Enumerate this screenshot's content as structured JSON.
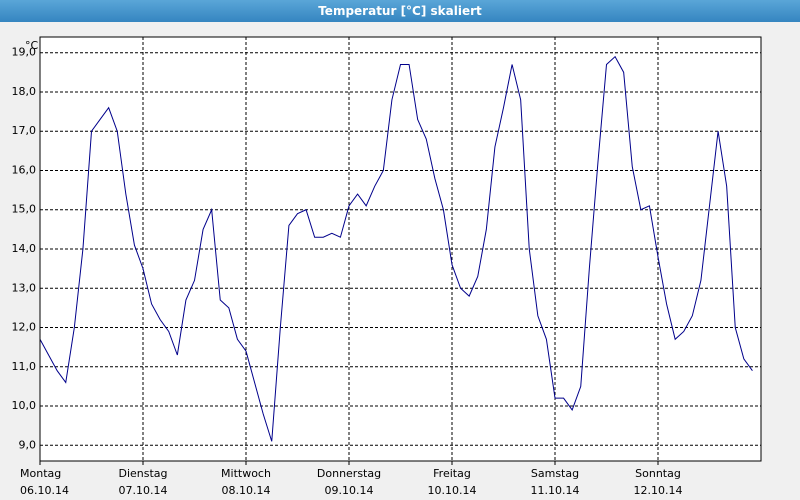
{
  "chart_data": {
    "type": "line",
    "title": "Temperatur [°C] skaliert",
    "y_unit": "°C",
    "x": [
      0,
      2,
      4,
      6,
      8,
      10,
      12,
      14,
      16,
      18,
      20,
      22,
      24,
      26,
      28,
      30,
      32,
      34,
      36,
      38,
      40,
      42,
      44,
      46,
      48,
      50,
      52,
      54,
      56,
      58,
      60,
      62,
      64,
      66,
      68,
      70,
      72,
      74,
      76,
      78,
      80,
      82,
      84,
      86,
      88,
      90,
      92,
      94,
      96,
      98,
      100,
      102,
      104,
      106,
      108,
      110,
      112,
      114,
      116,
      118,
      120,
      122,
      124,
      126,
      128,
      130,
      132,
      134,
      136,
      138,
      140,
      142,
      144,
      146,
      148,
      150,
      152,
      154,
      156,
      158,
      160,
      162,
      164,
      166
    ],
    "series": [
      {
        "name": "Temperatur",
        "color": "#00008b",
        "values": [
          11.7,
          11.3,
          10.9,
          10.6,
          12.0,
          14.0,
          17.0,
          17.3,
          17.6,
          17.0,
          15.4,
          14.1,
          13.5,
          12.6,
          12.2,
          11.9,
          11.3,
          12.7,
          13.2,
          14.5,
          15.0,
          12.7,
          12.5,
          11.7,
          11.4,
          10.6,
          9.8,
          9.1,
          12.0,
          14.6,
          14.9,
          15.0,
          14.3,
          14.3,
          14.4,
          14.3,
          15.1,
          15.4,
          15.1,
          15.6,
          16.0,
          17.8,
          18.7,
          18.7,
          17.3,
          16.8,
          15.8,
          15.0,
          13.6,
          13.0,
          12.8,
          13.3,
          14.5,
          16.6,
          17.6,
          18.7,
          17.8,
          14.0,
          12.3,
          11.7,
          10.2,
          10.2,
          9.9,
          10.5,
          13.5,
          16.2,
          18.7,
          18.9,
          18.5,
          16.1,
          15.0,
          15.1,
          13.8,
          12.6,
          11.7,
          11.9,
          12.3,
          13.2,
          15.1,
          17.0,
          15.6,
          12.0,
          11.2,
          10.9
        ]
      }
    ],
    "xlim": [
      0,
      168
    ],
    "xticks": [
      {
        "value": 0,
        "label": "Montag",
        "sublabel": "06.10.14"
      },
      {
        "value": 24,
        "label": "Dienstag",
        "sublabel": "07.10.14"
      },
      {
        "value": 48,
        "label": "Mittwoch",
        "sublabel": "08.10.14"
      },
      {
        "value": 72,
        "label": "Donnerstag",
        "sublabel": "09.10.14"
      },
      {
        "value": 96,
        "label": "Freitag",
        "sublabel": "10.10.14"
      },
      {
        "value": 120,
        "label": "Samstag",
        "sublabel": "11.10.14"
      },
      {
        "value": 144,
        "label": "Sonntag",
        "sublabel": "12.10.14"
      }
    ],
    "ylim": [
      8.6,
      19.4
    ],
    "yticks": [
      {
        "value": 9,
        "label": "9,0"
      },
      {
        "value": 10,
        "label": "10,0"
      },
      {
        "value": 11,
        "label": "11,0"
      },
      {
        "value": 12,
        "label": "12,0"
      },
      {
        "value": 13,
        "label": "13,0"
      },
      {
        "value": 14,
        "label": "14,0"
      },
      {
        "value": 15,
        "label": "15,0"
      },
      {
        "value": 16,
        "label": "16,0"
      },
      {
        "value": 17,
        "label": "17,0"
      },
      {
        "value": 18,
        "label": "18,0"
      },
      {
        "value": 19,
        "label": "19,0"
      }
    ],
    "grid": true
  }
}
